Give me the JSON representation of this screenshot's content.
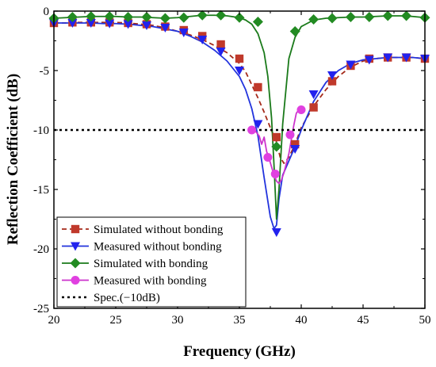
{
  "chart_data": {
    "type": "line",
    "title": "",
    "xlabel": "Frequency (GHz)",
    "ylabel": "Reflection Coefficient (dB)",
    "xlim": [
      20,
      50
    ],
    "ylim": [
      -25,
      0
    ],
    "xticks": [
      20,
      25,
      30,
      35,
      40,
      45,
      50
    ],
    "yticks": [
      0,
      -5,
      -10,
      -15,
      -20,
      -25
    ],
    "xtick_labels": [
      "20",
      "25",
      "30",
      "35",
      "40",
      "45",
      "50"
    ],
    "ytick_labels": [
      "0",
      "-5",
      "-10",
      "-15",
      "-20",
      "-25"
    ],
    "grid": false,
    "legend_position": "bottom-left",
    "series": [
      {
        "name": "Simulated without bonding",
        "color": "#a52a1a",
        "line_style": "dashed",
        "marker": "square",
        "marker_color": "#c0392b",
        "x": [
          20,
          21,
          22,
          23,
          24,
          25,
          26,
          27,
          28,
          29,
          30,
          31,
          32,
          33,
          34,
          35,
          35.5,
          36,
          36.5,
          37,
          37.5,
          38,
          38.3,
          38.6,
          39,
          39.5,
          40,
          41,
          42,
          43,
          44,
          45,
          46,
          47,
          48,
          49,
          50
        ],
        "y": [
          -1.0,
          -1.0,
          -0.95,
          -0.95,
          -0.95,
          -0.95,
          -1.0,
          -1.1,
          -1.2,
          -1.4,
          -1.7,
          -2.0,
          -2.4,
          -2.9,
          -3.5,
          -4.4,
          -5.1,
          -6.2,
          -7.3,
          -8.5,
          -9.8,
          -11.0,
          -12.3,
          -12.8,
          -12.3,
          -11.2,
          -9.8,
          -8.0,
          -6.6,
          -5.5,
          -4.7,
          -4.2,
          -4.0,
          -3.9,
          -3.9,
          -3.9,
          -4.0
        ],
        "marker_x": [
          20,
          21.5,
          23,
          24.5,
          26,
          27.5,
          29,
          30.5,
          32,
          33.5,
          35,
          36.5,
          38,
          39.5,
          41,
          42.5,
          44,
          45.5,
          47,
          48.5,
          50
        ],
        "marker_y": [
          -1.0,
          -0.95,
          -0.95,
          -0.95,
          -1.0,
          -1.1,
          -1.3,
          -1.6,
          -2.1,
          -2.8,
          -4.0,
          -6.4,
          -10.6,
          -11.2,
          -8.1,
          -5.9,
          -4.6,
          -4.0,
          -3.9,
          -3.9,
          -4.0
        ]
      },
      {
        "name": "Measured without bonding",
        "color": "#2233dd",
        "line_style": "solid",
        "marker": "triangle-down",
        "marker_color": "#2222ee",
        "x": [
          20,
          21,
          22,
          23,
          24,
          25,
          26,
          27,
          28,
          29,
          30,
          31,
          32,
          33,
          34,
          35,
          35.5,
          36,
          36.5,
          37,
          37.5,
          37.8,
          38,
          38.2,
          38.5,
          39,
          39.5,
          40,
          41,
          42,
          43,
          44,
          45,
          46,
          47,
          48,
          49,
          50
        ],
        "y": [
          -1.0,
          -1.0,
          -1.0,
          -1.0,
          -1.05,
          -1.05,
          -1.1,
          -1.2,
          -1.3,
          -1.5,
          -1.7,
          -2.1,
          -2.6,
          -3.3,
          -4.2,
          -5.5,
          -6.6,
          -8.2,
          -10.5,
          -14.0,
          -17.3,
          -18.3,
          -18.0,
          -15.8,
          -13.8,
          -12.6,
          -11.4,
          -10.0,
          -7.6,
          -6.0,
          -5.0,
          -4.4,
          -4.1,
          -4.0,
          -3.9,
          -3.9,
          -3.9,
          -4.0
        ],
        "marker_x": [
          20,
          21.5,
          23,
          24.5,
          26,
          27.5,
          29,
          30.5,
          32,
          33.5,
          35,
          36.5,
          38,
          39.5,
          41,
          42.5,
          44,
          45.5,
          47,
          48.5,
          50
        ],
        "marker_y": [
          -1.0,
          -1.0,
          -1.0,
          -1.05,
          -1.1,
          -1.2,
          -1.4,
          -1.8,
          -2.4,
          -3.4,
          -5.0,
          -9.5,
          -18.6,
          -11.6,
          -7.0,
          -5.4,
          -4.5,
          -4.1,
          -3.9,
          -3.9,
          -4.0
        ]
      },
      {
        "name": "Simulated with bonding",
        "color": "#1a7a1a",
        "line_style": "solid",
        "marker": "diamond",
        "marker_color": "#228b22",
        "x": [
          20,
          21,
          22,
          23,
          24,
          25,
          26,
          27,
          28,
          29,
          30,
          31,
          32,
          33,
          34,
          35,
          35.5,
          36,
          36.5,
          37,
          37.3,
          37.6,
          37.8,
          38,
          38.2,
          38.5,
          39,
          39.5,
          40,
          41,
          42,
          43,
          44,
          45,
          46,
          47,
          48,
          49,
          50
        ],
        "y": [
          -0.6,
          -0.55,
          -0.5,
          -0.45,
          -0.45,
          -0.45,
          -0.5,
          -0.5,
          -0.55,
          -0.6,
          -0.55,
          -0.45,
          -0.35,
          -0.35,
          -0.4,
          -0.55,
          -0.75,
          -1.1,
          -1.9,
          -3.5,
          -5.5,
          -9.0,
          -13.0,
          -17.5,
          -15.0,
          -9.5,
          -4.0,
          -2.2,
          -1.3,
          -0.75,
          -0.6,
          -0.55,
          -0.5,
          -0.5,
          -0.45,
          -0.4,
          -0.4,
          -0.45,
          -0.55
        ],
        "marker_x": [
          20,
          21.5,
          23,
          24.5,
          26,
          27.5,
          29,
          30.5,
          32,
          33.5,
          35,
          36.5,
          38,
          39.5,
          41,
          42.5,
          44,
          45.5,
          47,
          48.5,
          50
        ],
        "marker_y": [
          -0.6,
          -0.5,
          -0.45,
          -0.45,
          -0.5,
          -0.5,
          -0.6,
          -0.55,
          -0.35,
          -0.35,
          -0.55,
          -0.9,
          -11.4,
          -1.7,
          -0.7,
          -0.6,
          -0.5,
          -0.5,
          -0.4,
          -0.4,
          -0.55
        ]
      },
      {
        "name": "Measured with bonding",
        "color": "#cc33cc",
        "line_style": "solid",
        "marker": "circle",
        "marker_color": "#e040e0",
        "x": [
          36,
          36.3,
          36.6,
          36.8,
          37,
          37.2,
          37.4,
          37.6,
          37.8,
          38,
          38.2,
          38.4,
          38.6,
          38.8,
          39,
          39.2,
          39.4,
          39.6,
          39.8,
          40
        ],
        "y": [
          -10.0,
          -10.1,
          -10.5,
          -11.2,
          -10.6,
          -11.8,
          -12.4,
          -13.1,
          -13.8,
          -14.3,
          -14.5,
          -14.2,
          -13.6,
          -12.8,
          -12.0,
          -10.8,
          -9.6,
          -8.6,
          -8.3,
          -8.3
        ],
        "marker_x": [
          36,
          37.3,
          37.9,
          39.1,
          40
        ],
        "marker_y": [
          -10.0,
          -12.3,
          -13.7,
          -10.4,
          -8.3
        ]
      },
      {
        "name": "Spec.(−10dB)",
        "color": "#000000",
        "line_style": "dotted",
        "marker": "none",
        "x": [
          20,
          50
        ],
        "y": [
          -10,
          -10
        ]
      }
    ]
  }
}
